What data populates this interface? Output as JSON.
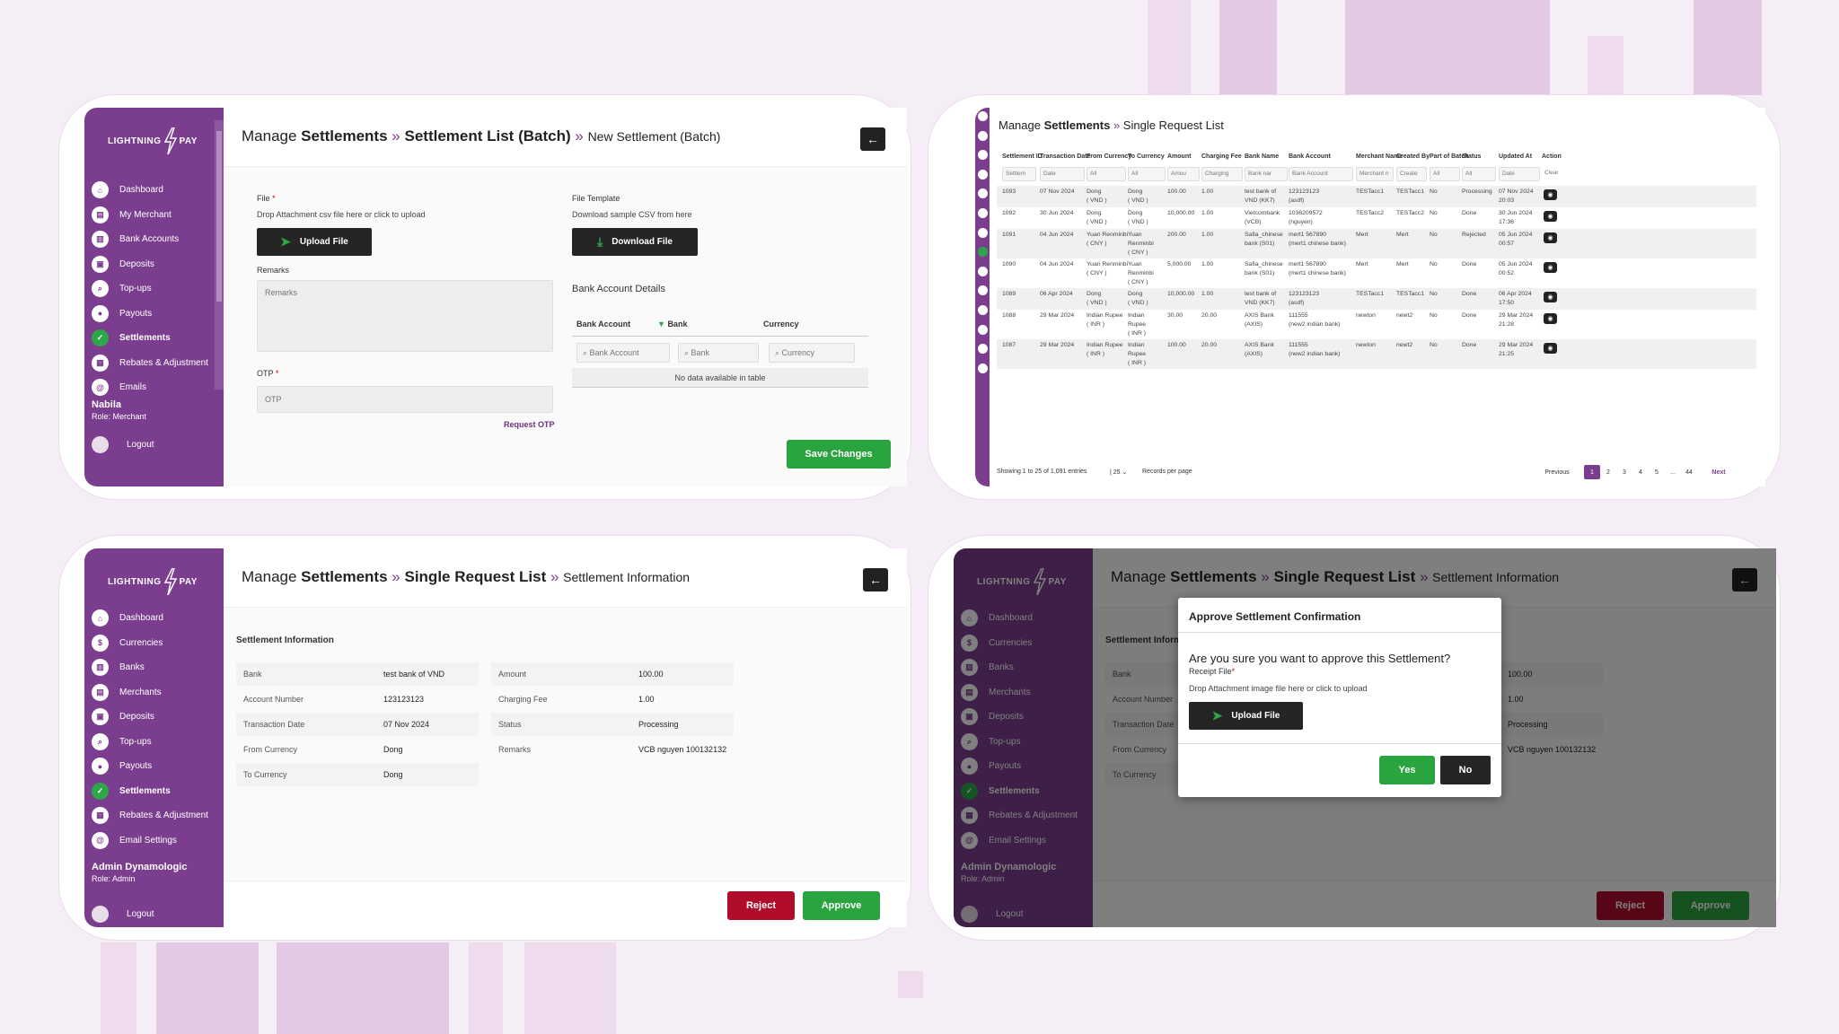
{
  "brand": {
    "logo_left": "LIGHTNING",
    "logo_right": "PAY"
  },
  "panel1": {
    "breadcrumb": {
      "prefix": "Manage",
      "section": "Settlements",
      "sep1": "»",
      "list": "Settlement List (Batch)",
      "sep2": "»",
      "current": "New Settlement (Batch)"
    },
    "nav": [
      {
        "label": "Dashboard",
        "icon": "home-icon",
        "glyph": "⌂"
      },
      {
        "label": "My Merchant",
        "icon": "merchant-icon",
        "glyph": "▤"
      },
      {
        "label": "Bank Accounts",
        "icon": "bank-icon",
        "glyph": "▥"
      },
      {
        "label": "Deposits",
        "icon": "deposit-icon",
        "glyph": "▣"
      },
      {
        "label": "Top-ups",
        "icon": "search-icon",
        "glyph": "⌕"
      },
      {
        "label": "Payouts",
        "icon": "payout-icon",
        "glyph": "●"
      },
      {
        "label": "Settlements",
        "icon": "check-icon",
        "glyph": "✓",
        "active": true
      },
      {
        "label": "Rebates & Adjustment",
        "icon": "rebate-icon",
        "glyph": "▦"
      },
      {
        "label": "Emails",
        "icon": "at-icon",
        "glyph": "@"
      }
    ],
    "user": {
      "name": "Nabila",
      "role": "Role: Merchant"
    },
    "logout": "Logout",
    "file_label": "File",
    "req": "*",
    "file_hint": "Drop Attachment csv file here or click to upload",
    "upload_btn": "Upload File",
    "template_label": "File Template",
    "template_hint": "Download sample CSV from here",
    "download_btn": "Download File",
    "remarks_label": "Remarks",
    "remarks_placeholder": "Remarks",
    "otp_label": "OTP",
    "otp_placeholder": "OTP",
    "request_otp": "Request OTP",
    "bank_details_title": "Bank Account Details",
    "cols": [
      "Bank Account",
      "Bank",
      "Currency"
    ],
    "filters": [
      "Bank Account",
      "Bank",
      "Currency"
    ],
    "no_data": "No data available in table",
    "save_btn": "Save Changes"
  },
  "panel2": {
    "breadcrumb": {
      "prefix": "Manage",
      "section": "Settlements",
      "sep": "»",
      "current": "Single Request List"
    },
    "headers": [
      "Settlement ID",
      "Transaction Date",
      "From Currency",
      "To Currency",
      "Amount",
      "Charging Fee",
      "Bank Name",
      "Bank Account",
      "Merchant Name",
      "Created By",
      "Part of Batch",
      "Status",
      "Updated At",
      "Action"
    ],
    "filters": [
      "Settlem",
      "Date",
      "All",
      "All",
      "Amou",
      "Charging",
      "Bank nar",
      "Bank Account",
      "Merchant n",
      "Create",
      "All",
      "All",
      "Date",
      "Clear"
    ],
    "rows": [
      {
        "id": "1093",
        "date": "07 Nov 2024",
        "from": "Dong\n( VND )",
        "to": "Dong\n( VND )",
        "amount": "100.00",
        "fee": "1.00",
        "bank": "test bank of\nVND (KK7)",
        "acct": "123123123\n(asdf)",
        "merchant": "TESTacc1",
        "created": "TESTacc1",
        "batch": "No",
        "status": "Processing",
        "updated": "07 Nov 2024\n20:03"
      },
      {
        "id": "1092",
        "date": "30 Jun 2024",
        "from": "Dong\n( VND )",
        "to": "Dong\n( VND )",
        "amount": "10,000.00",
        "fee": "1.00",
        "bank": "Vietcombank\n(VCB)",
        "acct": "1036209572\n(nguyen)",
        "merchant": "TESTacc2",
        "created": "TESTacc2",
        "batch": "No",
        "status": "Done",
        "updated": "30 Jun 2024\n17:36"
      },
      {
        "id": "1091",
        "date": "04 Jun 2024",
        "from": "Yuan Renminbi\n( CNY )",
        "to": "Yuan\nRenminbi\n( CNY )",
        "amount": "200.00",
        "fee": "1.00",
        "bank": "Safia_chinese\nbank (S01)",
        "acct": "mert1 567890\n(mert1 chinese bank)",
        "merchant": "Mert",
        "created": "Mert",
        "batch": "No",
        "status": "Rejected",
        "updated": "05 Jun 2024\n00:57"
      },
      {
        "id": "1090",
        "date": "04 Jun 2024",
        "from": "Yuan Renminbi\n( CNY )",
        "to": "Yuan\nRenminbi\n( CNY )",
        "amount": "5,000.00",
        "fee": "1.00",
        "bank": "Safia_chinese\nbank (S01)",
        "acct": "mert1 567890\n(mert1 chinese bank)",
        "merchant": "Mert",
        "created": "Mert",
        "batch": "No",
        "status": "Done",
        "updated": "05 Jun 2024\n00:52"
      },
      {
        "id": "1089",
        "date": "06 Apr 2024",
        "from": "Dong\n( VND )",
        "to": "Dong\n( VND )",
        "amount": "10,000.00",
        "fee": "1.00",
        "bank": "test bank of\nVND (KK7)",
        "acct": "123123123\n(asdf)",
        "merchant": "TESTacc1",
        "created": "TESTacc1",
        "batch": "No",
        "status": "Done",
        "updated": "06 Apr 2024\n17:50"
      },
      {
        "id": "1088",
        "date": "29 Mar 2024",
        "from": "Indian Rupee\n( INR )",
        "to": "Indian\nRupee\n( INR )",
        "amount": "30.00",
        "fee": "20.00",
        "bank": "AXIS Bank\n(AXIS)",
        "acct": "111555\n(new2 indian bank)",
        "merchant": "newton",
        "created": "newt2",
        "batch": "No",
        "status": "Done",
        "updated": "29 Mar 2024\n21:28"
      },
      {
        "id": "1087",
        "date": "29 Mar 2024",
        "from": "Indian Rupee\n( INR )",
        "to": "Indian\nRupee\n( INR )",
        "amount": "100.00",
        "fee": "20.00",
        "bank": "AXIS Bank\n(AXIS)",
        "acct": "111555\n(new2 indian bank)",
        "merchant": "newton",
        "created": "newt2",
        "batch": "No",
        "status": "Done",
        "updated": "29 Mar 2024\n21:25"
      }
    ],
    "showing": "Showing 1 to 25 of 1,091 entries",
    "per_page": "25",
    "per_page_label": "Records per page",
    "pages": [
      "Previous",
      "1",
      "2",
      "3",
      "4",
      "5",
      "...",
      "44",
      "Next"
    ]
  },
  "panel3": {
    "breadcrumb": {
      "prefix": "Manage",
      "section": "Settlements",
      "sep1": "»",
      "list": "Single Request List",
      "sep2": "»",
      "current": "Settlement Information"
    },
    "nav": [
      {
        "label": "Dashboard",
        "icon": "home-icon",
        "glyph": "⌂"
      },
      {
        "label": "Currencies",
        "icon": "dollar-icon",
        "glyph": "$"
      },
      {
        "label": "Banks",
        "icon": "bank-icon",
        "glyph": "▥"
      },
      {
        "label": "Merchants",
        "icon": "merchant-icon",
        "glyph": "▤"
      },
      {
        "label": "Deposits",
        "icon": "deposit-icon",
        "glyph": "▣"
      },
      {
        "label": "Top-ups",
        "icon": "search-icon",
        "glyph": "⌕"
      },
      {
        "label": "Payouts",
        "icon": "payout-icon",
        "glyph": "●"
      },
      {
        "label": "Settlements",
        "icon": "check-icon",
        "glyph": "✓",
        "active": true
      },
      {
        "label": "Rebates & Adjustment",
        "icon": "rebate-icon",
        "glyph": "▦"
      },
      {
        "label": "Email Settings",
        "icon": "at-icon",
        "glyph": "@"
      }
    ],
    "user": {
      "name": "Admin Dynamologic",
      "role": "Role: Admin"
    },
    "logout": "Logout",
    "section_title": "Settlement Information",
    "left": [
      {
        "k": "Bank",
        "v": "test bank of VND"
      },
      {
        "k": "Account Number",
        "v": "123123123"
      },
      {
        "k": "Transaction Date",
        "v": "07 Nov 2024"
      },
      {
        "k": "From Currency",
        "v": "Dong"
      },
      {
        "k": "To Currency",
        "v": "Dong"
      }
    ],
    "right": [
      {
        "k": "Amount",
        "v": "100.00"
      },
      {
        "k": "Charging Fee",
        "v": "1.00"
      },
      {
        "k": "Status",
        "v": "Processing"
      },
      {
        "k": "Remarks",
        "v": "VCB nguyen 100132132"
      }
    ],
    "reject_btn": "Reject",
    "approve_btn": "Approve"
  },
  "panel4": {
    "modal_title": "Approve Settlement Confirmation",
    "question": "Are you sure you want to approve this Settlement?",
    "receipt_label": "Receipt File",
    "req": "*",
    "receipt_hint": "Drop Attachment image file here or click to upload",
    "upload_btn": "Upload File",
    "yes_btn": "Yes",
    "no_btn": "No"
  }
}
